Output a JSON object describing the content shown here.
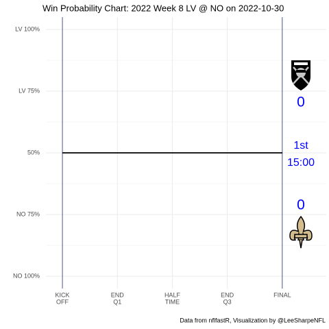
{
  "chart_data": {
    "type": "line",
    "title": "Win Probability Chart: 2022 Week 8 LV @ NO on 2022-10-30",
    "caption": "Data from nflfastR, Visualization by @LeeSharpeNFL",
    "x": [
      0,
      60
    ],
    "series": [
      {
        "color": "#000000",
        "values": [
          50,
          50
        ]
      }
    ],
    "xlim": [
      -4.5,
      72
    ],
    "xticks": [
      {
        "value": 0,
        "label": [
          "KICK",
          "OFF"
        ]
      },
      {
        "value": 15,
        "label": [
          "END",
          "Q1"
        ]
      },
      {
        "value": 30,
        "label": [
          "HALF",
          "TIME"
        ]
      },
      {
        "value": 45,
        "label": [
          "END",
          "Q3"
        ]
      },
      {
        "value": 60,
        "label": [
          "FINAL"
        ]
      }
    ],
    "ylim": [
      -5,
      105
    ],
    "yticks": [
      {
        "value": 0,
        "label": "NO 100%"
      },
      {
        "value": 25,
        "label": "NO 75%"
      },
      {
        "value": 50,
        "label": "50%"
      },
      {
        "value": 75,
        "label": "LV 75%"
      },
      {
        "value": 100,
        "label": "LV 100%"
      }
    ],
    "minor_yticks": [
      12.5,
      37.5,
      62.5,
      87.5
    ],
    "grid": true,
    "grid_color": "#ebebeb",
    "boundary_color": "#1f2a6b",
    "annotations": {
      "away_score": 0,
      "home_score": 0,
      "quarter": "1st",
      "clock": "15:00"
    }
  }
}
